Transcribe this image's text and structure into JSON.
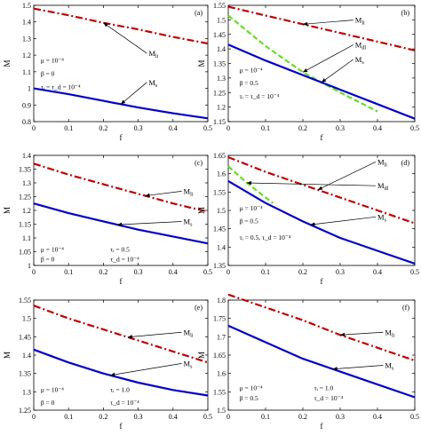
{
  "chart_data": [
    {
      "type": "line",
      "panel_label": "(a)",
      "xlabel": "f",
      "ylabel": "M",
      "xlim": [
        0,
        0.5
      ],
      "ylim": [
        0.8,
        1.5
      ],
      "xticks": [
        "0",
        "0.1",
        "0.2",
        "0.3",
        "0.4",
        "0.5"
      ],
      "xtick_values": [
        0,
        0.1,
        0.2,
        0.3,
        0.4,
        0.5
      ],
      "yticks": [
        "0.8",
        "0.9",
        "1",
        "1.1",
        "1.2",
        "1.3",
        "1.4",
        "1.5"
      ],
      "ytick_values": [
        0.8,
        0.9,
        1.0,
        1.1,
        1.2,
        1.3,
        1.4,
        1.5
      ],
      "series": [
        {
          "label": "M_li",
          "label_text": "M",
          "label_sub": "li",
          "style": "dashdot",
          "color": "#c00000",
          "x": [
            0,
            0.1,
            0.2,
            0.3,
            0.4,
            0.5
          ],
          "y": [
            1.48,
            1.44,
            1.395,
            1.355,
            1.31,
            1.27
          ]
        },
        {
          "label": "M_s",
          "label_text": "M",
          "label_sub": "s",
          "style": "solid",
          "color": "#0000cc",
          "x": [
            0,
            0.1,
            0.2,
            0.3,
            0.4,
            0.5
          ],
          "y": [
            1.0,
            0.965,
            0.925,
            0.885,
            0.85,
            0.82
          ]
        }
      ],
      "callouts": [
        {
          "series": 0,
          "at_x": 0.2,
          "label_x": 0.33,
          "label_y": 1.195
        },
        {
          "series": 1,
          "at_x": 0.25,
          "label_x": 0.33,
          "label_y": 1.02
        }
      ],
      "params": [
        {
          "text": "μ = 10⁻⁴",
          "x": 0.02,
          "y": 1.155
        },
        {
          "text": "β = 0",
          "x": 0.02,
          "y": 1.075
        },
        {
          "text": "τᵢ = τ_d = 10⁻⁴",
          "x": 0.02,
          "y": 0.995
        }
      ]
    },
    {
      "type": "line",
      "panel_label": "(b)",
      "xlabel": "f",
      "ylabel": "M",
      "xlim": [
        0,
        0.5
      ],
      "ylim": [
        1.15,
        1.55
      ],
      "xticks": [
        "0",
        "0.1",
        "0.2",
        "0.3",
        "0.4",
        "0.5"
      ],
      "xtick_values": [
        0,
        0.1,
        0.2,
        0.3,
        0.4,
        0.5
      ],
      "yticks": [
        "1.15",
        "1.2",
        "1.25",
        "1.3",
        "1.35",
        "1.4",
        "1.45",
        "1.5",
        "1.55"
      ],
      "ytick_values": [
        1.15,
        1.2,
        1.25,
        1.3,
        1.35,
        1.4,
        1.45,
        1.5,
        1.55
      ],
      "series": [
        {
          "label": "M_li",
          "label_text": "M",
          "label_sub": "li",
          "style": "dashdot",
          "color": "#c00000",
          "x": [
            0,
            0.1,
            0.2,
            0.3,
            0.4,
            0.5
          ],
          "y": [
            1.545,
            1.515,
            1.485,
            1.455,
            1.425,
            1.395
          ]
        },
        {
          "label": "M_dl",
          "label_text": "M",
          "label_sub": "dl",
          "style": "dashed",
          "color": "#66dd22",
          "x": [
            0,
            0.1,
            0.2,
            0.3,
            0.4
          ],
          "y": [
            1.515,
            1.41,
            1.32,
            1.25,
            1.185
          ]
        },
        {
          "label": "M_s",
          "label_text": "M",
          "label_sub": "s",
          "style": "solid",
          "color": "#0000cc",
          "x": [
            0,
            0.1,
            0.2,
            0.3,
            0.4,
            0.5
          ],
          "y": [
            1.415,
            1.36,
            1.31,
            1.26,
            1.21,
            1.16
          ]
        }
      ],
      "callouts": [
        {
          "series": 0,
          "at_x": 0.2,
          "label_x": 0.34,
          "label_y": 1.49
        },
        {
          "series": 1,
          "at_x": 0.2,
          "label_x": 0.34,
          "label_y": 1.405
        },
        {
          "series": 2,
          "at_x": 0.25,
          "label_x": 0.34,
          "label_y": 1.355
        }
      ],
      "params": [
        {
          "text": "μ = 10⁻⁴",
          "x": 0.03,
          "y": 1.32
        },
        {
          "text": "β = 0.5",
          "x": 0.03,
          "y": 1.275
        },
        {
          "text": "τᵢ = τ_d = 10⁻⁴",
          "x": 0.03,
          "y": 1.23
        }
      ]
    },
    {
      "type": "line",
      "panel_label": "(c)",
      "xlabel": "f",
      "ylabel": "M",
      "xlim": [
        0,
        0.5
      ],
      "ylim": [
        1.0,
        1.4
      ],
      "xticks": [
        "0",
        "0.1",
        "0.2",
        "0.3",
        "0.4",
        "0.5"
      ],
      "xtick_values": [
        0,
        0.1,
        0.2,
        0.3,
        0.4,
        0.5
      ],
      "yticks": [
        "1",
        "1.05",
        "1.1",
        "1.15",
        "1.2",
        "1.25",
        "1.3",
        "1.35",
        "1.4"
      ],
      "ytick_values": [
        1.0,
        1.05,
        1.1,
        1.15,
        1.2,
        1.25,
        1.3,
        1.35,
        1.4
      ],
      "series": [
        {
          "label": "M_li",
          "label_text": "M",
          "label_sub": "li",
          "style": "dashdot",
          "color": "#c00000",
          "x": [
            0,
            0.1,
            0.2,
            0.3,
            0.4,
            0.5
          ],
          "y": [
            1.37,
            1.33,
            1.295,
            1.26,
            1.225,
            1.195
          ]
        },
        {
          "label": "M_s",
          "label_text": "M",
          "label_sub": "s",
          "style": "solid",
          "color": "#0000cc",
          "x": [
            0,
            0.1,
            0.2,
            0.3,
            0.4,
            0.5
          ],
          "y": [
            1.225,
            1.19,
            1.16,
            1.13,
            1.105,
            1.08
          ]
        }
      ],
      "callouts": [
        {
          "series": 0,
          "at_x": 0.32,
          "label_x": 0.43,
          "label_y": 1.26
        },
        {
          "series": 1,
          "at_x": 0.24,
          "label_x": 0.43,
          "label_y": 1.15
        }
      ],
      "params": [
        {
          "text": "μ = 10⁻⁴",
          "x": 0.02,
          "y": 1.05
        },
        {
          "text": "τᵢ = 0.5",
          "x": 0.22,
          "y": 1.05
        },
        {
          "text": "β = 0",
          "x": 0.02,
          "y": 1.015
        },
        {
          "text": "τ_d = 10⁻⁴",
          "x": 0.22,
          "y": 1.015
        }
      ]
    },
    {
      "type": "line",
      "panel_label": "(d)",
      "xlabel": "f",
      "ylabel": "M",
      "xlim": [
        0,
        0.5
      ],
      "ylim": [
        1.35,
        1.65
      ],
      "xticks": [
        "0",
        "0.1",
        "0.2",
        "0.3",
        "0.4",
        "0.5"
      ],
      "xtick_values": [
        0,
        0.1,
        0.2,
        0.3,
        0.4,
        0.5
      ],
      "yticks": [
        "1.35",
        "1.4",
        "1.45",
        "1.5",
        "1.55",
        "1.6",
        "1.65"
      ],
      "ytick_values": [
        1.35,
        1.4,
        1.45,
        1.5,
        1.55,
        1.6,
        1.65
      ],
      "series": [
        {
          "label": "M_li",
          "label_text": "M",
          "label_sub": "li",
          "style": "dashdot",
          "color": "#c00000",
          "x": [
            0,
            0.1,
            0.2,
            0.3,
            0.4,
            0.5
          ],
          "y": [
            1.645,
            1.605,
            1.57,
            1.535,
            1.5,
            1.465
          ]
        },
        {
          "label": "M_dl",
          "label_text": "M",
          "label_sub": "dl",
          "style": "dashed",
          "color": "#66dd22",
          "x": [
            0,
            0.05,
            0.1,
            0.12
          ],
          "y": [
            1.62,
            1.575,
            1.535,
            1.52
          ]
        },
        {
          "label": "M_s",
          "label_text": "M",
          "label_sub": "s",
          "style": "solid",
          "color": "#0000cc",
          "x": [
            0,
            0.1,
            0.2,
            0.3,
            0.4,
            0.5
          ],
          "y": [
            1.58,
            1.52,
            1.47,
            1.425,
            1.39,
            1.355
          ]
        }
      ],
      "callouts": [
        {
          "series": 0,
          "at_x": 0.24,
          "label_x": 0.4,
          "label_y": 1.625
        },
        {
          "series": 1,
          "at_x": 0.05,
          "label_x": 0.4,
          "label_y": 1.56
        },
        {
          "series": 2,
          "at_x": 0.22,
          "label_x": 0.4,
          "label_y": 1.475
        }
      ],
      "params": [
        {
          "text": "μ = 10⁻⁴",
          "x": 0.03,
          "y": 1.5
        },
        {
          "text": "β = 0.5",
          "x": 0.03,
          "y": 1.465
        },
        {
          "text": "τᵢ = 0.5,  τ_d = 10⁻⁴",
          "x": 0.03,
          "y": 1.42
        }
      ]
    },
    {
      "type": "line",
      "panel_label": "(e)",
      "xlabel": "f",
      "ylabel": "M",
      "xlim": [
        0,
        0.5
      ],
      "ylim": [
        1.25,
        1.55
      ],
      "xticks": [
        "0",
        "0.1",
        "0.2",
        "0.3",
        "0.4",
        "0.5"
      ],
      "xtick_values": [
        0,
        0.1,
        0.2,
        0.3,
        0.4,
        0.5
      ],
      "yticks": [
        "1.25",
        "1.3",
        "1.35",
        "1.4",
        "1.45",
        "1.5",
        "1.55"
      ],
      "ytick_values": [
        1.25,
        1.3,
        1.35,
        1.4,
        1.45,
        1.5,
        1.55
      ],
      "series": [
        {
          "label": "M_li",
          "label_text": "M",
          "label_sub": "li",
          "style": "dashdot",
          "color": "#c00000",
          "x": [
            0,
            0.1,
            0.2,
            0.3,
            0.4,
            0.5
          ],
          "y": [
            1.535,
            1.5,
            1.47,
            1.44,
            1.41,
            1.38
          ]
        },
        {
          "label": "M_s",
          "label_text": "M",
          "label_sub": "s",
          "style": "solid",
          "color": "#0000cc",
          "x": [
            0,
            0.1,
            0.2,
            0.3,
            0.4,
            0.5
          ],
          "y": [
            1.415,
            1.38,
            1.35,
            1.325,
            1.305,
            1.29
          ]
        }
      ],
      "callouts": [
        {
          "series": 0,
          "at_x": 0.27,
          "label_x": 0.43,
          "label_y": 1.455
        },
        {
          "series": 1,
          "at_x": 0.22,
          "label_x": 0.43,
          "label_y": 1.37
        }
      ],
      "params": [
        {
          "text": "μ = 10⁻⁴",
          "x": 0.02,
          "y": 1.3
        },
        {
          "text": "τᵢ = 1.0",
          "x": 0.22,
          "y": 1.3
        },
        {
          "text": "β = 0",
          "x": 0.02,
          "y": 1.265
        },
        {
          "text": "τ_d = 10⁻⁴",
          "x": 0.22,
          "y": 1.265
        }
      ]
    },
    {
      "type": "line",
      "panel_label": "(f)",
      "xlabel": "f",
      "ylabel": "M",
      "xlim": [
        0,
        0.5
      ],
      "ylim": [
        1.5,
        1.8
      ],
      "xticks": [
        "0",
        "0.1",
        "0.2",
        "0.3",
        "0.4",
        "0.5"
      ],
      "xtick_values": [
        0,
        0.1,
        0.2,
        0.3,
        0.4,
        0.5
      ],
      "yticks": [
        "1.5",
        "1.55",
        "1.6",
        "1.65",
        "1.7",
        "1.75",
        "1.8"
      ],
      "ytick_values": [
        1.5,
        1.55,
        1.6,
        1.65,
        1.7,
        1.75,
        1.8
      ],
      "series": [
        {
          "label": "M_li",
          "label_text": "M",
          "label_sub": "li",
          "style": "dashdot",
          "color": "#c00000",
          "x": [
            0,
            0.1,
            0.2,
            0.3,
            0.4,
            0.5
          ],
          "y": [
            1.815,
            1.78,
            1.745,
            1.705,
            1.67,
            1.635
          ]
        },
        {
          "label": "M_s",
          "label_text": "M",
          "label_sub": "s",
          "style": "solid",
          "color": "#0000cc",
          "x": [
            0,
            0.1,
            0.2,
            0.3,
            0.4,
            0.5
          ],
          "y": [
            1.73,
            1.685,
            1.64,
            1.605,
            1.57,
            1.535
          ]
        }
      ],
      "callouts": [
        {
          "series": 0,
          "at_x": 0.3,
          "label_x": 0.42,
          "label_y": 1.705
        },
        {
          "series": 1,
          "at_x": 0.28,
          "label_x": 0.42,
          "label_y": 1.615
        }
      ],
      "params": [
        {
          "text": "μ = 10⁻⁴",
          "x": 0.03,
          "y": 1.555
        },
        {
          "text": "τᵢ = 1.0",
          "x": 0.23,
          "y": 1.555
        },
        {
          "text": "β = 0.5",
          "x": 0.03,
          "y": 1.527
        },
        {
          "text": "τ_d = 10⁻⁴",
          "x": 0.23,
          "y": 1.527
        }
      ]
    }
  ]
}
